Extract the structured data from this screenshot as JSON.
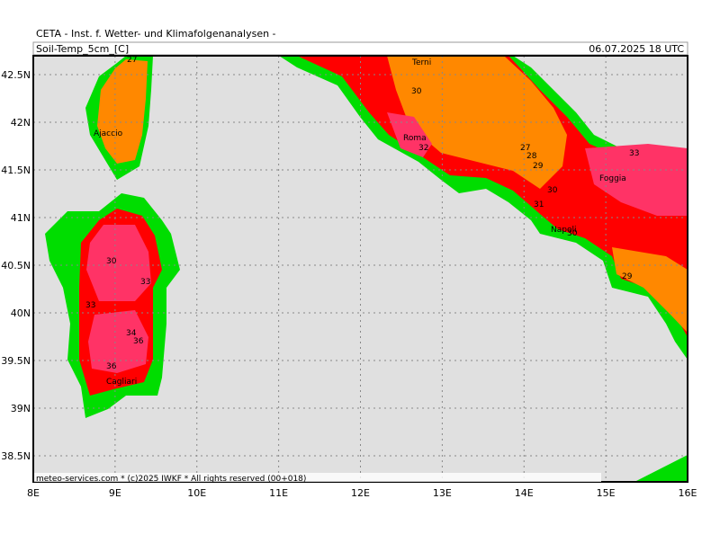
{
  "header": {
    "title": "CETA - Inst. f. Wetter- und Klimafolgenanalysen -",
    "field": "Soil-Temp_5cm_[C]",
    "valid": "06.07.2025 18 UTC"
  },
  "map": {
    "lat_ticks": [
      {
        "value": 42.5,
        "label": "42.5N"
      },
      {
        "value": 42,
        "label": "42N"
      },
      {
        "value": 41.5,
        "label": "41.5N"
      },
      {
        "value": 41,
        "label": "41N"
      },
      {
        "value": 40.5,
        "label": "40.5N"
      },
      {
        "value": 40,
        "label": "40N"
      },
      {
        "value": 39.5,
        "label": "39.5N"
      },
      {
        "value": 39,
        "label": "39N"
      },
      {
        "value": 38.5,
        "label": "38.5N"
      }
    ],
    "lon_ticks": [
      {
        "value": 8,
        "label": "8E"
      },
      {
        "value": 9,
        "label": "9E"
      },
      {
        "value": 10,
        "label": "10E"
      },
      {
        "value": 11,
        "label": "11E"
      },
      {
        "value": 12,
        "label": "12E"
      },
      {
        "value": 13,
        "label": "13E"
      },
      {
        "value": 14,
        "label": "14E"
      },
      {
        "value": 15,
        "label": "15E"
      },
      {
        "value": 16,
        "label": "16E"
      }
    ],
    "cities": [
      "Terni",
      "Roma",
      "Ajaccio",
      "Cagliari",
      "Napoli",
      "Foggia"
    ],
    "contour_labels": [
      27,
      30,
      32,
      27,
      28,
      29,
      30,
      31,
      30,
      33,
      29,
      30,
      33,
      33,
      34,
      36,
      36
    ]
  },
  "footer": "meteo-services.com * (c)2025 IWKF * All rights reserved (00+018)"
}
